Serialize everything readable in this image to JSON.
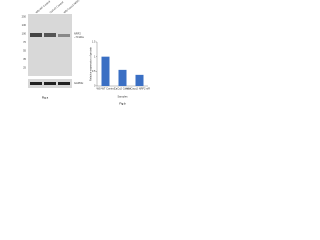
{
  "blot": {
    "lanes": [
      "WS-WT Control",
      "CaCo2 Control",
      "WS-Caco2 NRF2 siRNA"
    ],
    "markers": [
      "250",
      "130",
      "100",
      "70",
      "55",
      "35",
      "25"
    ],
    "bands": [
      "NRF2",
      "~70 kDa",
      "GAPDH"
    ],
    "caption": "Fig a"
  },
  "chart_data": {
    "type": "bar",
    "ylabel": "Relative expression of protein",
    "xlabel": "Samples",
    "caption": "Fig b",
    "categories": [
      "WS-WT Control",
      "CaCo2 Control",
      "WS-Caco2 NRF2 siRNA"
    ],
    "values": [
      1,
      0.55,
      0.38
    ],
    "color": "#3a6fc4",
    "ylim": [
      0,
      1.5
    ],
    "yticks": [
      0,
      0.5,
      1,
      1.5
    ]
  }
}
